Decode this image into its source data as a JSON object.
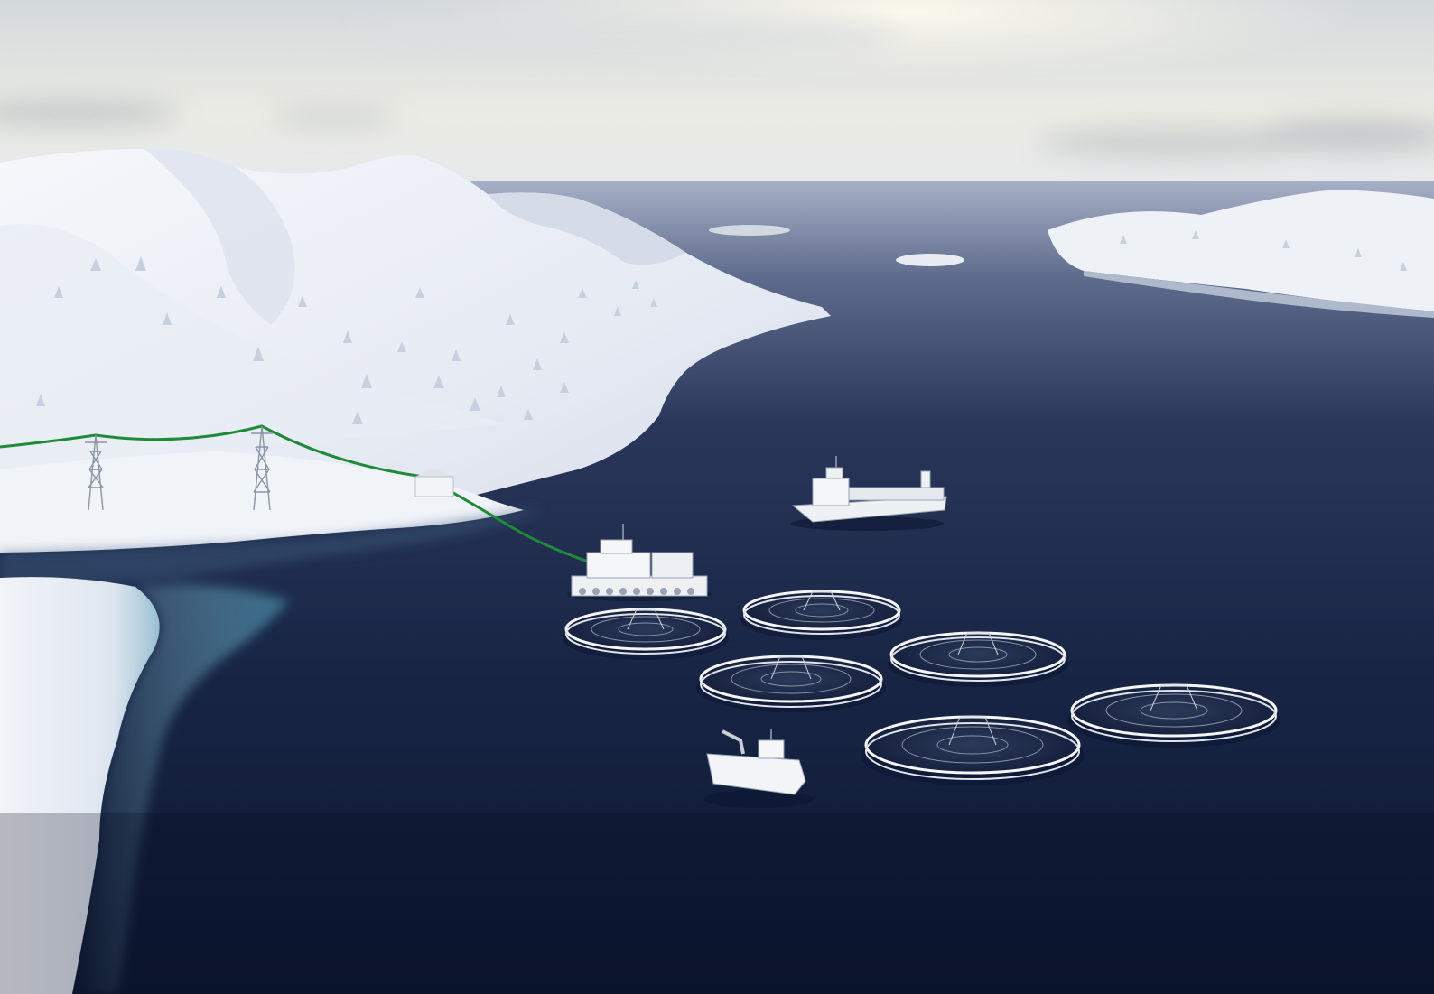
{
  "scene": {
    "kind": "aerial-render",
    "subject": "offshore-fish-farm-with-shore-power",
    "elements": [
      "snowy-mountains",
      "snow-covered-trees",
      "power-pylons",
      "green-power-cable",
      "shore-substation",
      "feed-barge",
      "cargo-ship",
      "service-catamaran",
      "circular-fish-pens",
      "fjord-water",
      "overcast-sky"
    ],
    "counts": {
      "fish_pens": 6,
      "power_pylons": 2,
      "vessels": 3
    }
  },
  "colors": {
    "sky_top": "#d6dadd",
    "sky_bright": "#f2f0e6",
    "snow": "#eef1f7",
    "snow_shadow": "#c7cfe0",
    "water_near": "#0e1a33",
    "water_mid": "#1c2a4c",
    "water_far": "#7986a5",
    "cable": "#1f8a3a",
    "structure": "#f4f6f8",
    "structure_shadow": "#9aa3b3"
  },
  "icons": {
    "pylon": "pylon-icon",
    "substation": "building-icon",
    "barge": "barge-icon",
    "ship": "ship-icon",
    "catamaran": "boat-icon",
    "pen": "fish-pen-icon"
  }
}
